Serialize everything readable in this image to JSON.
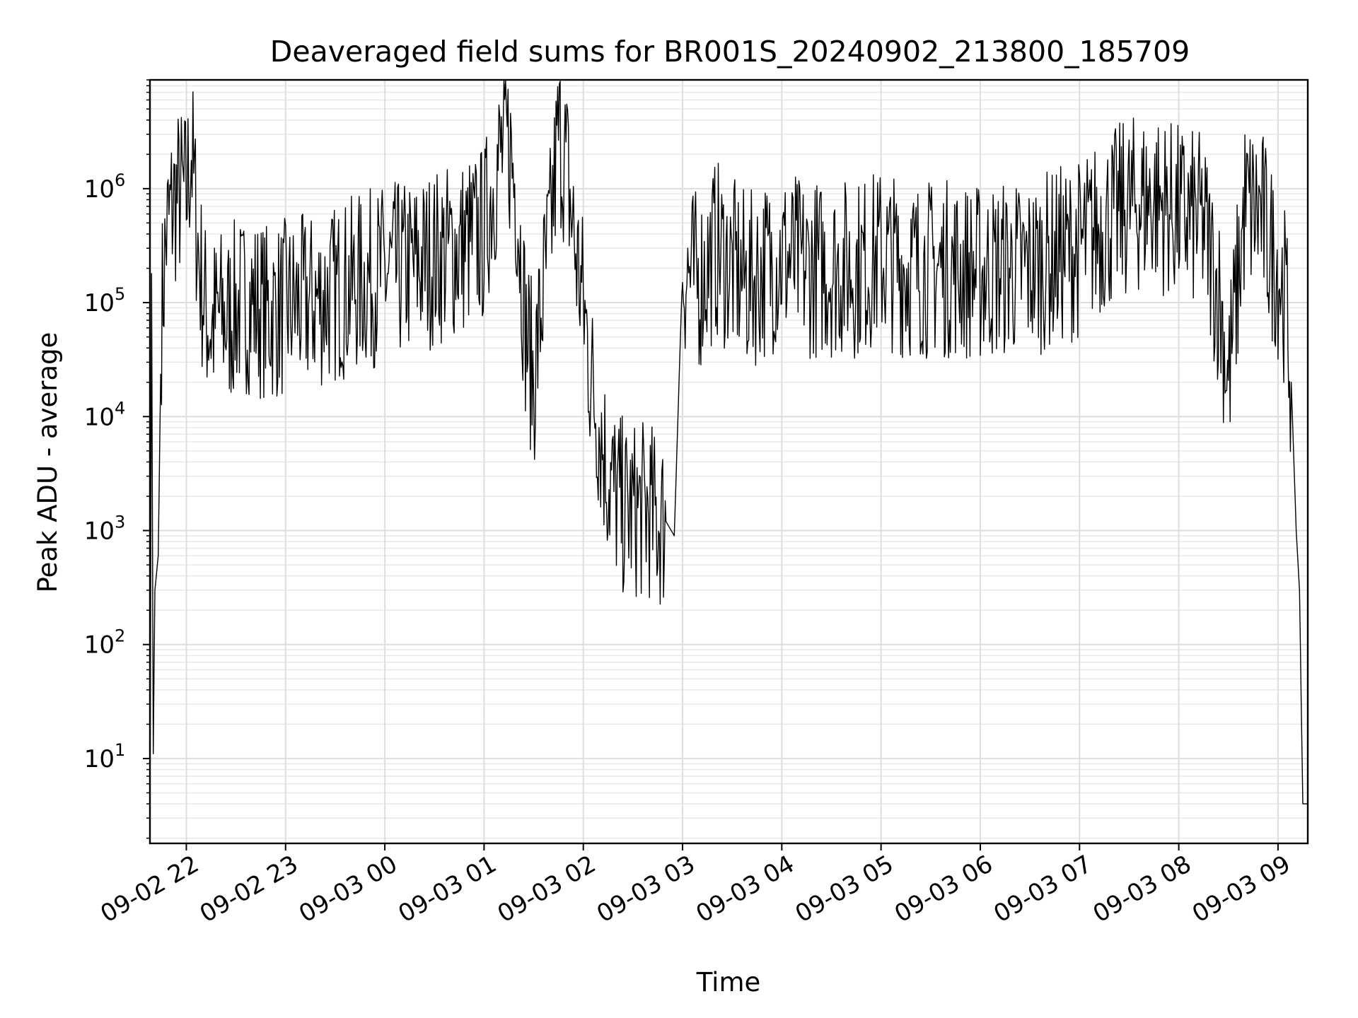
{
  "chart_data": {
    "type": "line",
    "title": "Deaveraged field sums for BR001S_20240902_213800_185709",
    "xlabel": "Time",
    "ylabel": "Peak ADU - average",
    "yscale": "log",
    "ylim": [
      1.8,
      9000000
    ],
    "xlim": [
      "2024-09-02 21:38",
      "2024-09-03 09:18"
    ],
    "grid": true,
    "line_color": "#000000",
    "x_ticks": [
      "09-02 22",
      "09-02 23",
      "09-03 00",
      "09-03 01",
      "09-03 02",
      "09-03 03",
      "09-03 04",
      "09-03 05",
      "09-03 06",
      "09-03 07",
      "09-03 08",
      "09-03 09"
    ],
    "y_ticks": [
      {
        "base": "10",
        "exp": "1",
        "value": 10
      },
      {
        "base": "10",
        "exp": "2",
        "value": 100
      },
      {
        "base": "10",
        "exp": "3",
        "value": 1000
      },
      {
        "base": "10",
        "exp": "4",
        "value": 10000
      },
      {
        "base": "10",
        "exp": "5",
        "value": 100000
      },
      {
        "base": "10",
        "exp": "6",
        "value": 1000000
      }
    ],
    "series": [
      {
        "x": [
          "2024-09-02 21:38",
          "2024-09-02 21:39",
          "2024-09-02 21:40",
          "2024-09-02 21:41",
          "2024-09-02 21:43",
          "2024-09-02 21:45",
          "2024-09-02 21:48",
          "2024-09-02 21:52",
          "2024-09-02 21:56",
          "2024-09-02 22:00",
          "2024-09-02 22:03",
          "2024-09-02 22:08",
          "2024-09-02 22:12",
          "2024-09-02 22:15",
          "2024-09-02 22:20",
          "2024-09-02 22:25",
          "2024-09-02 22:30",
          "2024-09-02 22:40",
          "2024-09-02 22:50",
          "2024-09-02 23:00",
          "2024-09-02 23:15",
          "2024-09-02 23:30",
          "2024-09-02 23:45",
          "2024-09-03 00:00",
          "2024-09-03 00:15",
          "2024-09-03 00:30",
          "2024-09-03 00:45",
          "2024-09-03 01:00",
          "2024-09-03 01:05",
          "2024-09-03 01:10",
          "2024-09-03 01:15",
          "2024-09-03 01:20",
          "2024-09-03 01:25",
          "2024-09-03 01:30",
          "2024-09-03 01:35",
          "2024-09-03 01:40",
          "2024-09-03 01:45",
          "2024-09-03 01:50",
          "2024-09-03 01:55",
          "2024-09-03 02:00",
          "2024-09-03 02:05",
          "2024-09-03 02:10",
          "2024-09-03 02:15",
          "2024-09-03 02:20",
          "2024-09-03 02:25",
          "2024-09-03 02:30",
          "2024-09-03 02:35",
          "2024-09-03 02:40",
          "2024-09-03 02:45",
          "2024-09-03 02:50",
          "2024-09-03 02:55",
          "2024-09-03 03:00",
          "2024-09-03 03:10",
          "2024-09-03 03:20",
          "2024-09-03 03:30",
          "2024-09-03 03:40",
          "2024-09-03 03:50",
          "2024-09-03 04:00",
          "2024-09-03 04:15",
          "2024-09-03 04:30",
          "2024-09-03 04:45",
          "2024-09-03 05:00",
          "2024-09-03 05:15",
          "2024-09-03 05:30",
          "2024-09-03 05:45",
          "2024-09-03 06:00",
          "2024-09-03 06:15",
          "2024-09-03 06:30",
          "2024-09-03 06:45",
          "2024-09-03 07:00",
          "2024-09-03 07:15",
          "2024-09-03 07:30",
          "2024-09-03 07:45",
          "2024-09-03 08:00",
          "2024-09-03 08:15",
          "2024-09-03 08:25",
          "2024-09-03 08:30",
          "2024-09-03 08:40",
          "2024-09-03 08:50",
          "2024-09-03 08:55",
          "2024-09-03 09:00",
          "2024-09-03 09:05",
          "2024-09-03 09:08",
          "2024-09-03 09:11",
          "2024-09-03 09:13",
          "2024-09-03 09:15",
          "2024-09-03 09:18"
        ],
        "y": [
          2,
          180000,
          11,
          300,
          600,
          80000,
          400000,
          750000,
          900000,
          850000,
          2300000,
          200000,
          80000,
          60000,
          80000,
          70000,
          90000,
          100000,
          80000,
          90000,
          100000,
          120000,
          150000,
          180000,
          200000,
          250000,
          300000,
          400000,
          1000000,
          2000000,
          2500000,
          800000,
          60000,
          20000,
          100000,
          400000,
          3000000,
          1500000,
          300000,
          100000,
          20000,
          8000,
          3000,
          2000,
          1500,
          1500,
          1500,
          1500,
          1200,
          1200,
          900,
          200000,
          150000,
          300000,
          200000,
          150000,
          200000,
          250000,
          200000,
          200000,
          200000,
          250000,
          200000,
          200000,
          200000,
          180000,
          200000,
          200000,
          250000,
          300000,
          500000,
          700000,
          800000,
          600000,
          500000,
          100000,
          20000,
          700000,
          600000,
          300000,
          200000,
          100000,
          20000,
          1000,
          300,
          4,
          4
        ]
      }
    ]
  }
}
